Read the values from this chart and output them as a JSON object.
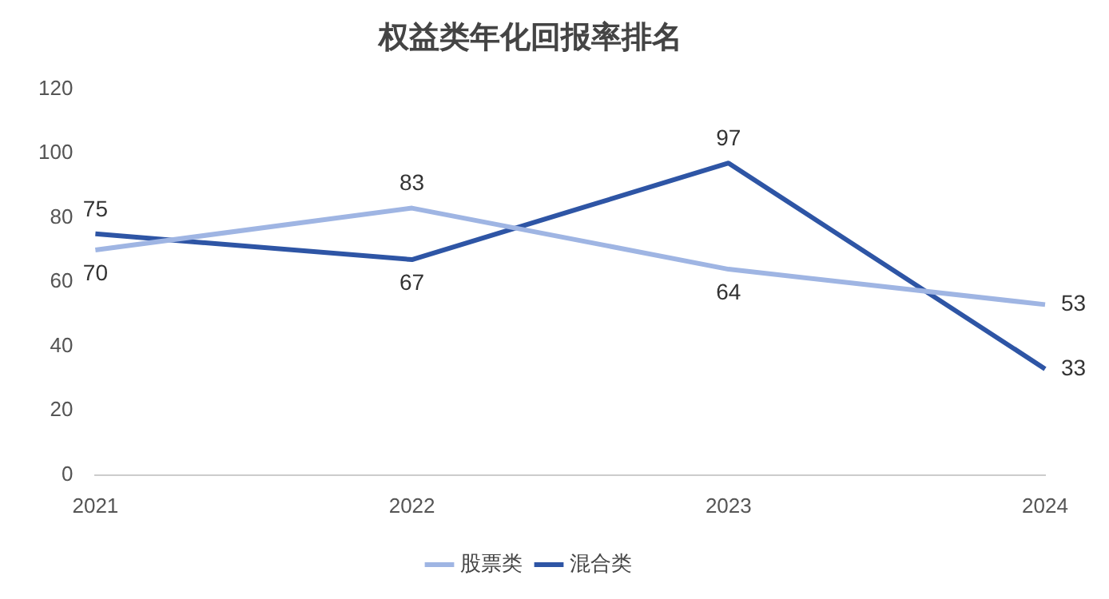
{
  "chart_data": {
    "type": "line",
    "title": "权益类年化回报率排名",
    "categories": [
      "2021",
      "2022",
      "2023",
      "2024"
    ],
    "series": [
      {
        "name": "股票类",
        "color": "#9fb5e3",
        "values": [
          70,
          83,
          64,
          53
        ]
      },
      {
        "name": "混合类",
        "color": "#2e55a5",
        "values": [
          75,
          67,
          97,
          33
        ]
      }
    ],
    "ylim": [
      0,
      120
    ],
    "yticks": [
      0,
      20,
      40,
      60,
      80,
      100,
      120
    ],
    "grid": false,
    "legend": "bottom",
    "marker": "none",
    "line_style": "solid",
    "data_labels": true
  }
}
